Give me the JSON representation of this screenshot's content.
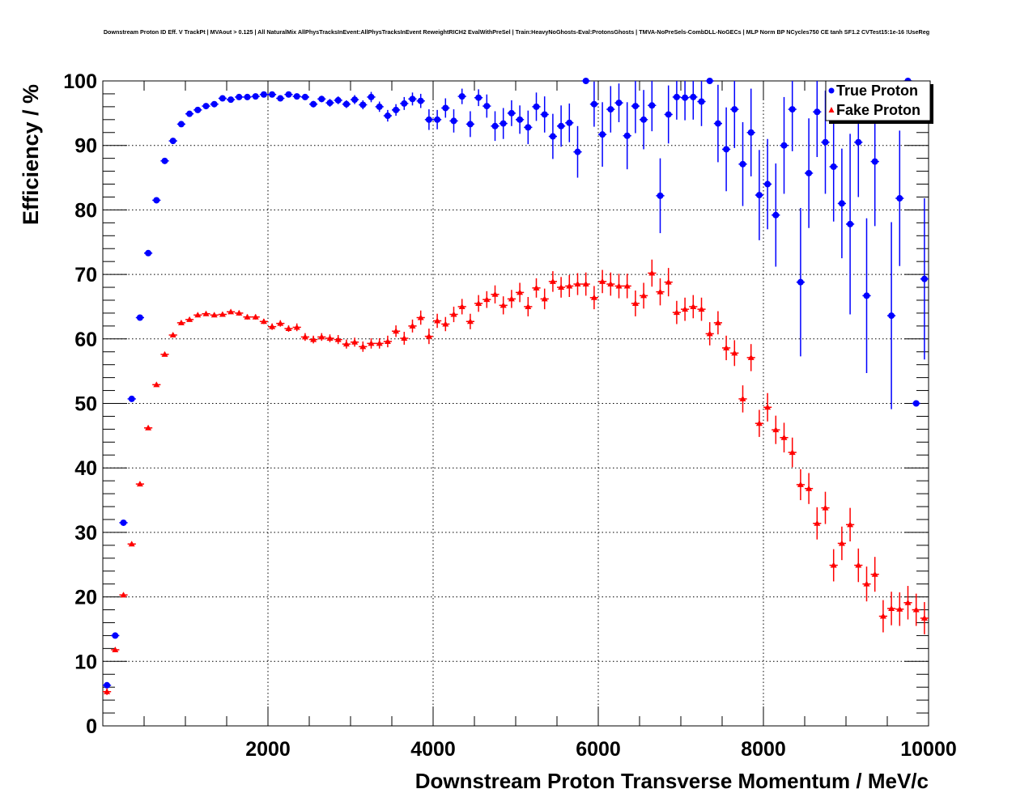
{
  "chart_data": {
    "type": "scatter",
    "title": "Downstream Proton ID Eff. V TrackPt | MVAout > 0.125 | All NaturalMix AllPhysTracksInEvent:AllPhysTracksInEvent ReweightRICH2 EvalWithPreSel | Train:HeavyNoGhosts-Eval:ProtonsGhosts | TMVA-NoPreSels-CombDLL-NoGECs | MLP Norm BP NCycles750 CE tanh SF1.2 CVTest15:1e-16 !UseReg",
    "xlabel": "Downstream Proton Transverse Momentum / MeV/c",
    "ylabel": "Efficiency / %",
    "xlim": [
      0,
      10000
    ],
    "ylim": [
      0,
      100
    ],
    "x_ticks": [
      "2000",
      "4000",
      "6000",
      "8000",
      "10000"
    ],
    "y_ticks": [
      "0",
      "10",
      "20",
      "30",
      "40",
      "50",
      "60",
      "70",
      "80",
      "90",
      "100"
    ],
    "grid": true,
    "legend_position": "top-right",
    "bin_width": 100,
    "series": [
      {
        "name": "True Proton",
        "color": "#0000ff",
        "marker": "circle",
        "values": [
          6.3,
          14.0,
          31.5,
          50.7,
          63.3,
          73.3,
          81.5,
          87.6,
          90.7,
          93.3,
          94.9,
          95.5,
          96.1,
          96.4,
          97.3,
          97.1,
          97.5,
          97.5,
          97.6,
          97.9,
          97.9,
          97.3,
          97.9,
          97.6,
          97.5,
          96.4,
          97.2,
          96.6,
          97.0,
          96.4,
          97.1,
          96.3,
          97.5,
          96.0,
          94.6,
          95.5,
          96.5,
          97.2,
          96.9,
          94.0,
          94.0,
          95.8,
          93.8,
          97.6,
          93.3,
          97.4,
          96.1,
          93.0,
          93.4,
          95.0,
          94.0,
          92.8,
          96.0,
          94.8,
          91.4,
          93.0,
          93.5,
          89.0,
          100,
          96.4,
          91.7,
          95.6,
          96.6,
          91.5,
          96.1,
          94.0,
          96.2,
          82.2,
          94.8,
          97.5,
          97.4,
          97.5,
          96.8,
          100,
          93.4,
          89.4,
          95.6,
          87.1,
          92.0,
          82.3,
          84.0,
          79.2,
          90.0,
          95.6,
          68.8,
          85.7,
          95.2,
          90.5,
          86.7,
          81.0,
          77.8,
          90.5,
          66.7,
          87.5,
          null,
          63.6,
          81.8,
          100,
          50.0,
          69.3
        ],
        "errors": [
          0.4,
          0.4,
          0.4,
          0.4,
          0.4,
          0.3,
          0.3,
          0.3,
          0.3,
          0.3,
          0.3,
          0.3,
          0.3,
          0.3,
          0.3,
          0.3,
          0.3,
          0.3,
          0.3,
          0.3,
          0.3,
          0.4,
          0.4,
          0.4,
          0.4,
          0.5,
          0.5,
          0.6,
          0.6,
          0.6,
          0.7,
          0.7,
          0.8,
          0.8,
          0.9,
          0.9,
          1.0,
          1.0,
          1.1,
          1.6,
          1.5,
          1.5,
          1.8,
          1.2,
          2.0,
          1.3,
          1.8,
          2.3,
          2.4,
          2.0,
          2.2,
          2.6,
          2.2,
          2.8,
          3.5,
          3.2,
          3.0,
          4.0,
          0,
          3.5,
          5.0,
          3.6,
          3.0,
          5.2,
          4.2,
          4.6,
          4.0,
          5.8,
          4.5,
          3.5,
          3.5,
          3.5,
          3.8,
          0,
          6.0,
          6.5,
          6.0,
          6.5,
          6.8,
          7.0,
          7.0,
          8.0,
          7.5,
          6.5,
          11.5,
          8.5,
          7.0,
          8.0,
          8.5,
          8.5,
          14.0,
          8.5,
          12.0,
          10.0,
          0,
          14.5,
          10.5,
          0,
          0,
          12.5
        ]
      },
      {
        "name": "Fake Proton",
        "color": "#ff0000",
        "marker": "triangle",
        "values": [
          5.3,
          11.8,
          20.3,
          28.2,
          37.5,
          46.2,
          52.9,
          57.6,
          60.6,
          62.5,
          63.0,
          63.7,
          63.9,
          63.7,
          63.8,
          64.2,
          64.0,
          63.4,
          63.4,
          62.7,
          61.9,
          62.4,
          61.6,
          61.8,
          60.3,
          59.9,
          60.3,
          60.1,
          59.9,
          59.2,
          59.5,
          58.8,
          59.3,
          59.3,
          59.6,
          61.2,
          60.1,
          62.0,
          63.3,
          60.4,
          62.8,
          62.3,
          63.8,
          65.0,
          62.7,
          65.5,
          66.1,
          66.9,
          65.2,
          66.2,
          67.2,
          65.0,
          67.9,
          66.2,
          68.9,
          68.0,
          68.2,
          68.5,
          68.5,
          66.4,
          68.9,
          68.5,
          68.2,
          68.2,
          65.5,
          66.7,
          70.2,
          67.3,
          68.8,
          64.1,
          64.6,
          65.0,
          64.6,
          60.8,
          62.5,
          58.6,
          57.8,
          50.7,
          57.1,
          46.9,
          49.4,
          45.9,
          44.7,
          42.4,
          37.4,
          36.8,
          31.4,
          33.8,
          24.9,
          28.3,
          31.2,
          24.9,
          22.0,
          23.5,
          17.0,
          18.2,
          18.1,
          19.1,
          18.0,
          16.7
        ],
        "errors": [
          0.5,
          0.3,
          0.3,
          0.3,
          0.3,
          0.3,
          0.3,
          0.3,
          0.3,
          0.3,
          0.3,
          0.3,
          0.3,
          0.3,
          0.3,
          0.3,
          0.4,
          0.4,
          0.4,
          0.4,
          0.5,
          0.5,
          0.5,
          0.6,
          0.6,
          0.6,
          0.6,
          0.6,
          0.7,
          0.7,
          0.7,
          0.8,
          0.8,
          0.8,
          0.9,
          0.9,
          1.0,
          1.0,
          1.1,
          1.2,
          1.1,
          1.1,
          1.2,
          1.2,
          1.2,
          1.3,
          1.3,
          1.4,
          1.4,
          1.4,
          1.5,
          1.5,
          1.5,
          1.6,
          1.6,
          1.6,
          1.7,
          1.7,
          1.8,
          1.8,
          1.8,
          1.8,
          1.9,
          1.9,
          2.0,
          2.0,
          2.1,
          2.1,
          2.2,
          1.8,
          1.8,
          1.8,
          1.8,
          1.8,
          1.8,
          1.9,
          2.0,
          2.1,
          2.1,
          2.1,
          2.2,
          2.2,
          2.3,
          2.3,
          2.4,
          2.4,
          2.5,
          2.5,
          2.5,
          2.6,
          2.6,
          2.6,
          2.7,
          2.7,
          2.5,
          2.6,
          2.6,
          2.6,
          2.5,
          2.5
        ]
      }
    ]
  }
}
